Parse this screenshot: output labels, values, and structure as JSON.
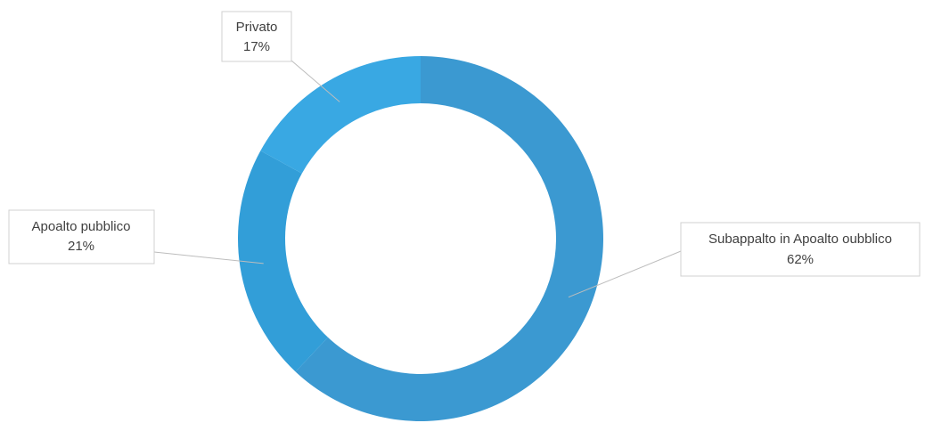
{
  "chart_data": {
    "type": "pie",
    "variant": "donut",
    "categories": [
      "Subappalto in Appalto pubblico",
      "Appalto pubblico",
      "Privato"
    ],
    "values": [
      62,
      21,
      17
    ],
    "display_labels": [
      "Subappalto in Apoalto oubblico",
      "Apoalto pubblico",
      "Privato"
    ],
    "value_labels": [
      "62%",
      "21%",
      "17%"
    ],
    "colors": [
      "#3b99d1",
      "#329ed8",
      "#39a8e3"
    ],
    "legend": "none"
  }
}
